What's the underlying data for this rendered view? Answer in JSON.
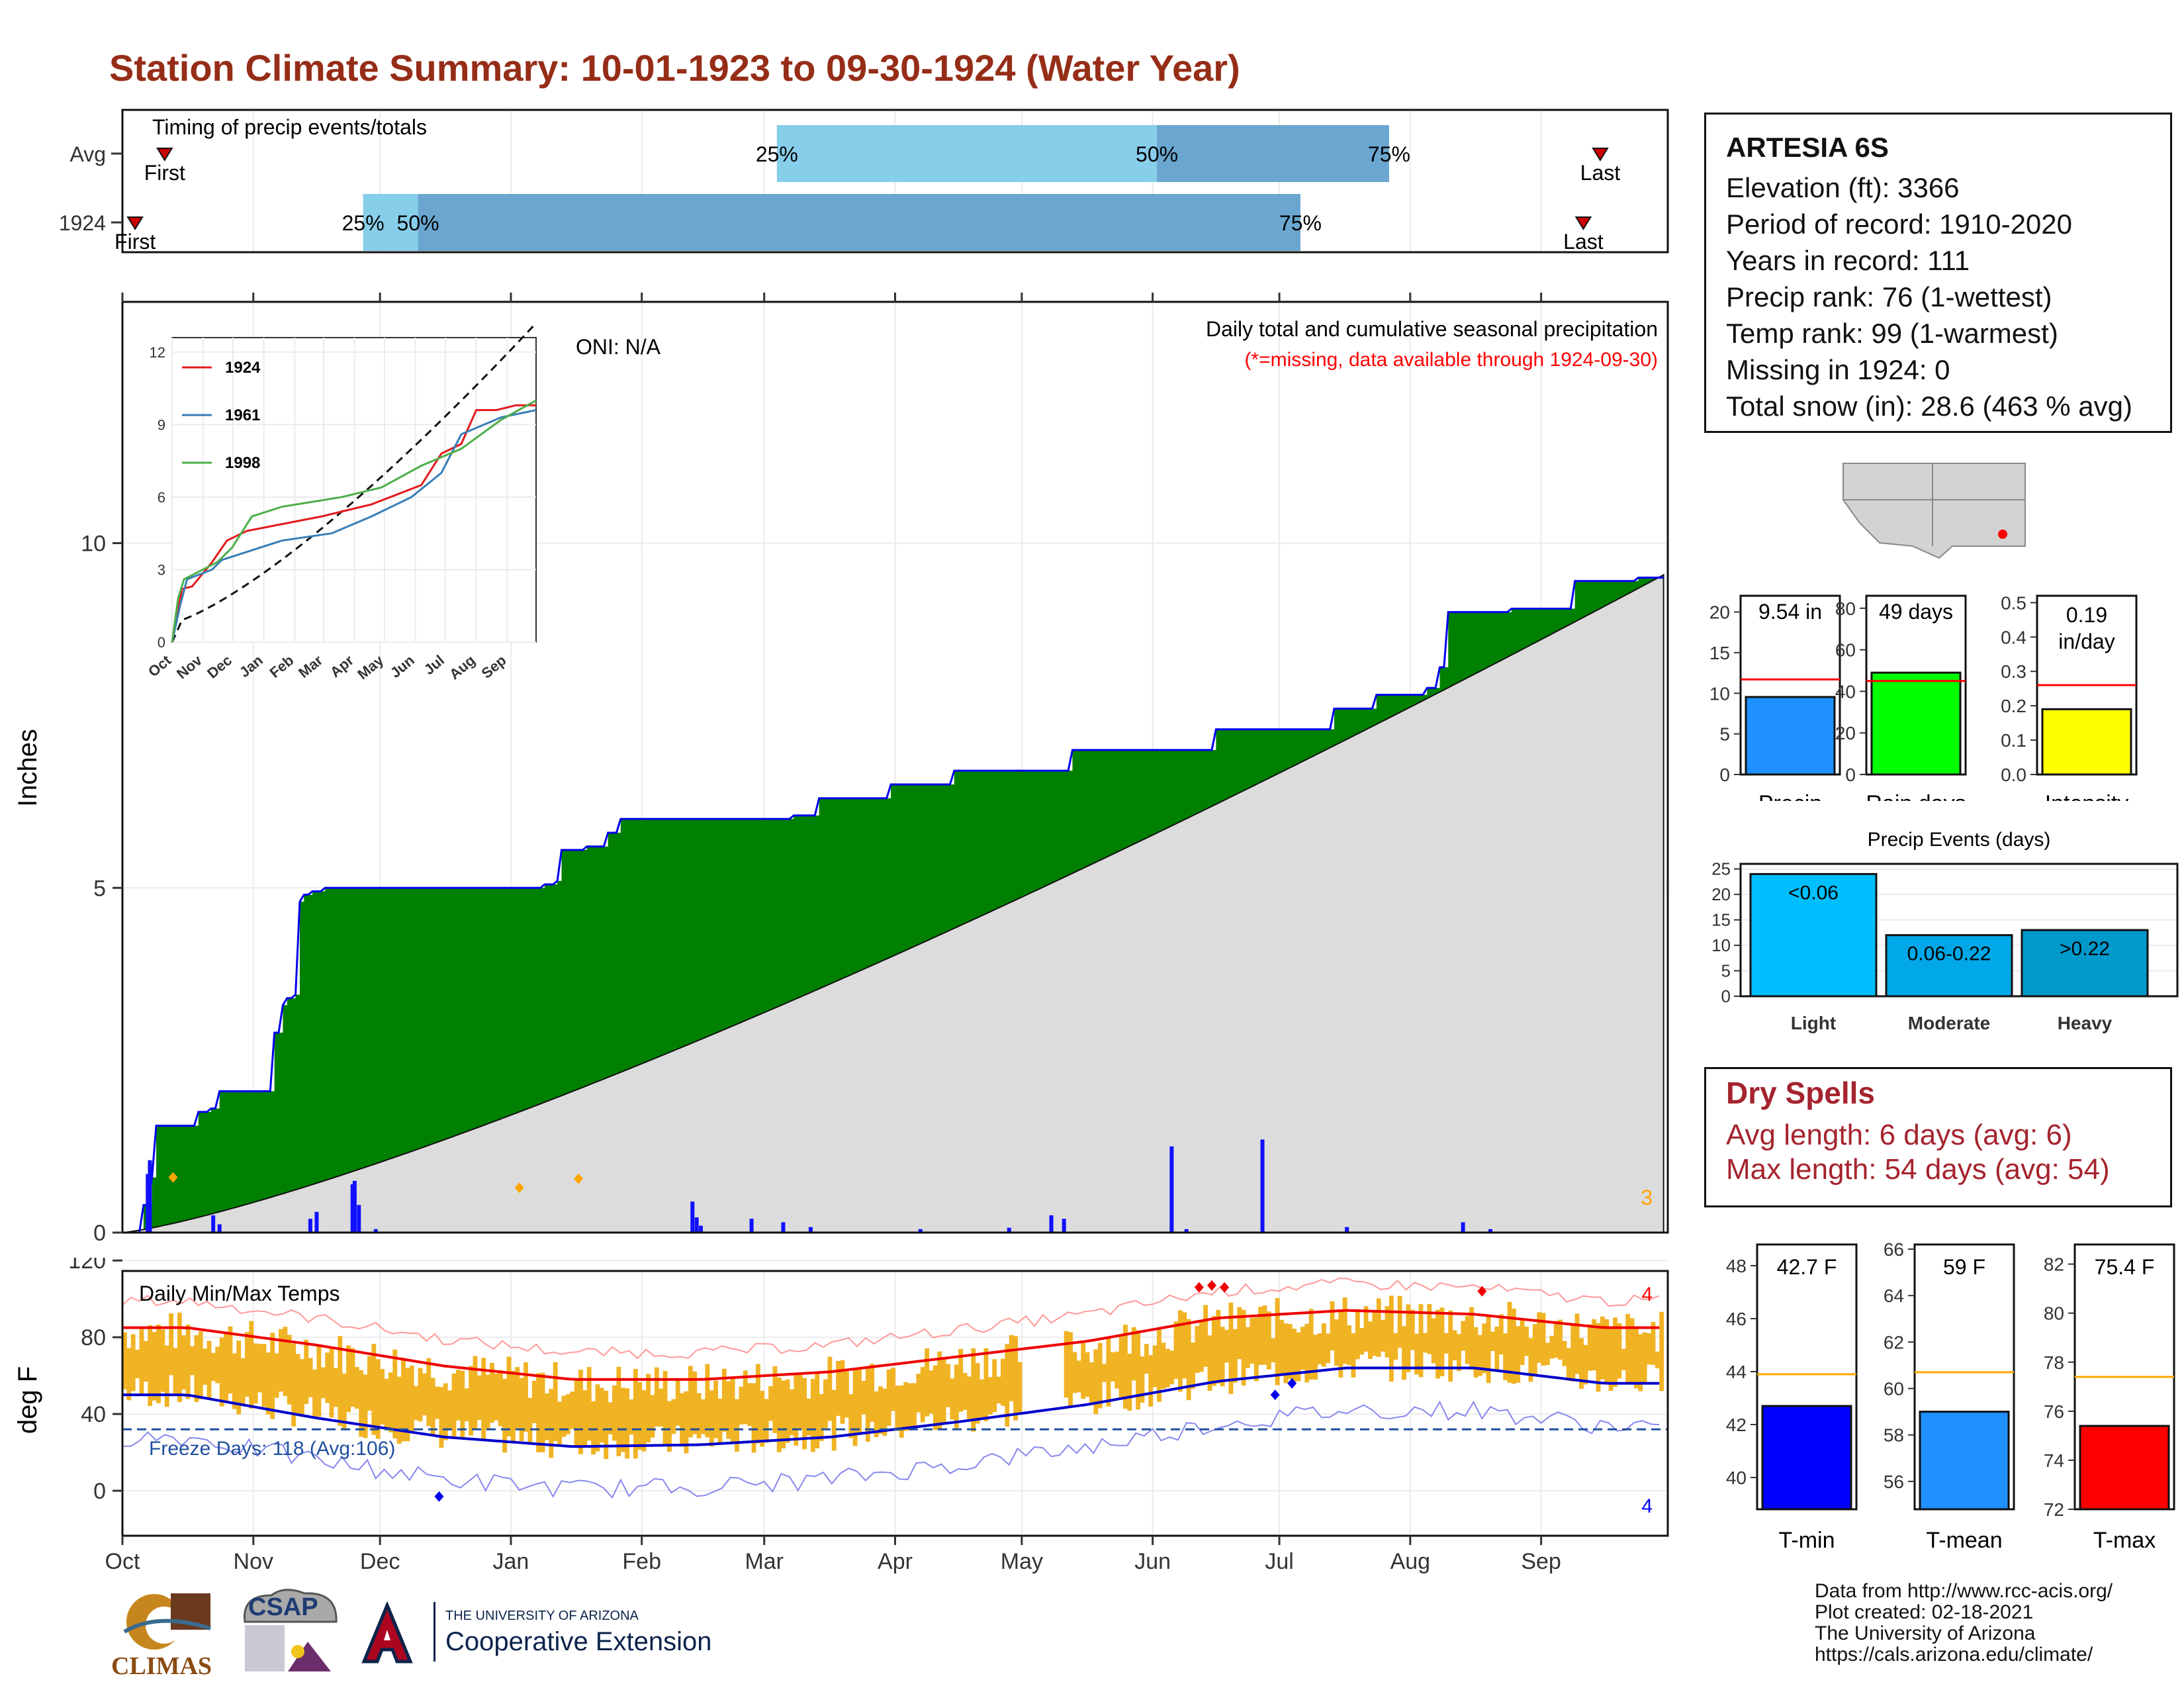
{
  "title": "Station Climate Summary: 10-01-1923 to 09-30-1924 (Water Year)",
  "months": [
    "Oct",
    "Nov",
    "Dec",
    "Jan",
    "Feb",
    "Mar",
    "Apr",
    "May",
    "Jun",
    "Jul",
    "Aug",
    "Sep"
  ],
  "timing": {
    "label": "Timing of precip events/totals",
    "rows": [
      {
        "name": "Avg",
        "first_label": "First",
        "last_label": "Last",
        "q25_label": "25%",
        "q50_label": "50%",
        "q75_label": "75%",
        "q25_day": 155,
        "q50_day": 245,
        "q75_day": 300,
        "first_day": 10,
        "last_day": 350
      },
      {
        "name": "1924",
        "first_label": "First",
        "last_label": "Last",
        "q25_label": "25%",
        "q50_label": "50%",
        "q75_label": "75%",
        "q25_day": 57,
        "q50_day": 70,
        "q75_day": 279,
        "first_day": 3,
        "last_day": 346
      }
    ]
  },
  "station": {
    "name": "ARTESIA 6S",
    "lines": [
      "Elevation (ft): 3366",
      "Period of record: 1910-2020",
      "Years in record: 111",
      "Precip rank: 76 (1-wettest)",
      "Temp rank: 99 (1-warmest)",
      "Missing in 1924: 0",
      "Total snow (in): 28.6 (463 % avg)"
    ]
  },
  "precip_panel": {
    "ylabel": "Inches",
    "oni_label": "ONI: N/A",
    "subtitle": "Daily total and cumulative seasonal precipitation",
    "missing_note": "(*=missing, data available through 1924-09-30)",
    "corner_count": "3",
    "yticks": [
      "0",
      "5",
      "10"
    ]
  },
  "inset": {
    "yticks": [
      "0",
      "3",
      "6",
      "9",
      "12"
    ],
    "xticks": [
      "Oct",
      "Nov",
      "Dec",
      "Jan",
      "Feb",
      "Mar",
      "Apr",
      "May",
      "Jun",
      "Jul",
      "Aug",
      "Sep"
    ],
    "legend": [
      {
        "name": "1924",
        "color": "#e41a1c"
      },
      {
        "name": "1961",
        "color": "#377eb8"
      },
      {
        "name": "1998",
        "color": "#4daf4a"
      }
    ]
  },
  "temp_panel": {
    "ylabel": "deg F",
    "title": "Daily Min/Max Temps",
    "freeze_label": "Freeze Days: 118 (Avg:106)",
    "count_top": "4",
    "count_bottom": "4",
    "yticks": [
      "0",
      "40",
      "80",
      "120"
    ]
  },
  "bar_summaries": [
    {
      "label": "Precip",
      "value_label": "9.54 in",
      "value": 9.54,
      "avg": 11.7,
      "ymax": 22,
      "ticks": [
        "0",
        "5",
        "10",
        "15",
        "20"
      ],
      "color": "#1e90ff",
      "avg_color": "#ff0000"
    },
    {
      "label": "Rain days",
      "value_label": "49 days",
      "value": 49,
      "avg": 45,
      "ymax": 86,
      "ticks": [
        "0",
        "20",
        "40",
        "60",
        "80"
      ],
      "color": "#00ff00",
      "avg_color": "#ff0000"
    },
    {
      "label": "Intensity",
      "value_label": "0.19 in/day",
      "value": 0.19,
      "avg": 0.26,
      "ymax": 0.52,
      "ticks": [
        "0.0",
        "0.1",
        "0.2",
        "0.3",
        "0.4",
        "0.5"
      ],
      "color": "#ffff00",
      "avg_color": "#ff0000"
    }
  ],
  "precip_events": {
    "title": "Precip Events (days)",
    "ticks": [
      "0",
      "5",
      "10",
      "15",
      "20",
      "25"
    ],
    "categories": [
      {
        "label": "Light",
        "value_label": "<0.06",
        "value": 24,
        "color": "#00bfff"
      },
      {
        "label": "Moderate",
        "value_label": "0.06-0.22",
        "value": 12,
        "color": "#00a8e8"
      },
      {
        "label": "Heavy",
        "value_label": ">0.22",
        "value": 13,
        "color": "#0099cc"
      }
    ]
  },
  "dry_spells": {
    "title": "Dry Spells",
    "avg_line": "Avg length: 6 days (avg: 6)",
    "max_line": "Max length: 54 days (avg: 54)"
  },
  "temp_summaries": [
    {
      "label": "T-min",
      "value_label": "42.7 F",
      "value": 42.7,
      "avg": 43.9,
      "ymin": 38.8,
      "ymax": 48.8,
      "ticks": [
        "40",
        "42",
        "44",
        "46",
        "48"
      ],
      "color": "#0000ff"
    },
    {
      "label": "T-mean",
      "value_label": "59 F",
      "value": 59.0,
      "avg": 60.7,
      "ymin": 54.8,
      "ymax": 66.2,
      "ticks": [
        "56",
        "58",
        "60",
        "62",
        "64",
        "66"
      ],
      "color": "#1e90ff"
    },
    {
      "label": "T-max",
      "value_label": "75.4 F",
      "value": 75.4,
      "avg": 77.4,
      "ymin": 72,
      "ymax": 82.8,
      "ticks": [
        "72",
        "74",
        "76",
        "78",
        "80",
        "82"
      ],
      "color": "#ff0000"
    }
  ],
  "credits": [
    "Data from http://www.rcc-acis.org/",
    "Plot created: 02-18-2021",
    "The University of Arizona",
    "https://cals.arizona.edu/climate/"
  ],
  "logos": {
    "climas": "CLIMAS",
    "csap": "CSAP",
    "ua_small": "THE UNIVERSITY OF ARIZONA",
    "ua_large": "Cooperative Extension"
  },
  "chart_data": [
    {
      "type": "area",
      "title": "Daily total and cumulative seasonal precipitation",
      "ylabel": "Inches",
      "ylim": [
        0,
        13.5
      ],
      "x_unit": "day of water year",
      "series": [
        {
          "name": "1924",
          "values_at_day": [
            [
              0,
              0
            ],
            [
              10,
              0.4
            ],
            [
              14,
              0.8
            ],
            [
              15,
              1.55
            ],
            [
              35,
              1.6
            ],
            [
              36,
              1.75
            ],
            [
              42,
              1.8
            ],
            [
              45,
              2.0
            ],
            [
              46,
              2.05
            ],
            [
              70,
              2.05
            ],
            [
              71,
              2.2
            ],
            [
              72,
              2.9
            ],
            [
              75,
              3.0
            ],
            [
              76,
              3.3
            ],
            [
              78,
              3.4
            ],
            [
              82,
              3.45
            ],
            [
              84,
              4.8
            ],
            [
              86,
              4.9
            ],
            [
              90,
              4.95
            ],
            [
              95,
              5.0
            ],
            [
              200,
              5.05
            ],
            [
              205,
              5.1
            ],
            [
              207,
              5.4
            ],
            [
              208,
              5.55
            ],
            [
              220,
              5.6
            ],
            [
              230,
              5.8
            ],
            [
              235,
              6.0
            ],
            [
              318,
              6.05
            ],
            [
              330,
              6.3
            ],
            [
              355,
              6.3
            ],
            [
              365,
              6.5
            ],
            [
              395,
              6.7
            ],
            [
              450,
              7.0
            ],
            [
              520,
              7.3
            ],
            [
              575,
              7.6
            ],
            [
              585,
              7.6
            ],
            [
              595,
              7.8
            ],
            [
              620,
              7.9
            ],
            [
              625,
              8.2
            ],
            [
              630,
              9.0
            ],
            [
              660,
              9.05
            ],
            [
              690,
              9.45
            ],
            [
              720,
              9.5
            ],
            [
              735,
              9.54
            ]
          ]
        }
      ]
    },
    {
      "type": "line",
      "title": "Daily Min/Max Temps",
      "ylabel": "deg F",
      "ylim": [
        -20,
        120
      ],
      "series": [
        {
          "name": "avg max",
          "values": [
            85,
            76,
            65,
            58,
            58,
            62,
            70,
            78,
            90,
            94,
            92,
            85
          ]
        },
        {
          "name": "avg min",
          "values": [
            50,
            38,
            28,
            23,
            24,
            28,
            36,
            45,
            57,
            64,
            64,
            56
          ]
        }
      ]
    },
    {
      "type": "bar",
      "categories": [
        "Light",
        "Moderate",
        "Heavy"
      ],
      "values": [
        24,
        12,
        13
      ],
      "title": "Precip Events (days)"
    }
  ]
}
